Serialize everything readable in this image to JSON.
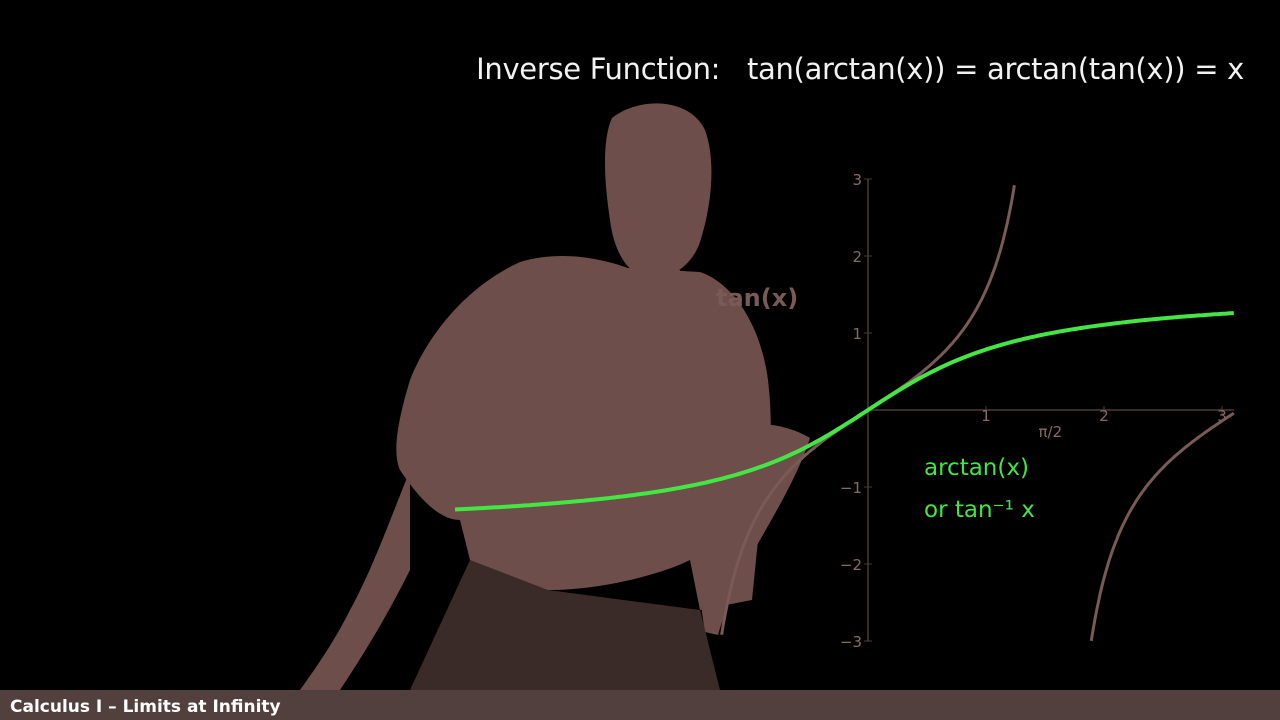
{
  "slide": {
    "headline_label": "Inverse Function:",
    "headline_identity": "tan(arctan(x)) = arctan(tan(x)) = x",
    "footer_title": "Calculus I – Limits at Infinity"
  },
  "chart_data": {
    "type": "line",
    "title": "",
    "xlabel": "",
    "ylabel": "",
    "xlim": [
      -3.5,
      3.1
    ],
    "ylim": [
      -3,
      3
    ],
    "x_ticks": [
      1,
      2,
      3
    ],
    "y_ticks": [
      -3,
      -2,
      -1,
      1,
      2,
      3
    ],
    "grid": false,
    "annotations": [
      {
        "text": "tan(x)",
        "color": "#7a5a56"
      },
      {
        "text": "π/2",
        "color": "#8a6a64"
      }
    ],
    "series": [
      {
        "name": "tan(x)",
        "color": "#7a5a56",
        "function": "tan"
      },
      {
        "name": "arctan(x)",
        "label_line2": "or tan⁻¹ x",
        "color": "#44e644",
        "function": "arctan"
      }
    ],
    "colors": {
      "background": "#000000",
      "axis": "#4a3a38",
      "tick_label": "#8a6a64",
      "presenter": "#6e4e4a",
      "footer_bg": "#52403e"
    }
  }
}
